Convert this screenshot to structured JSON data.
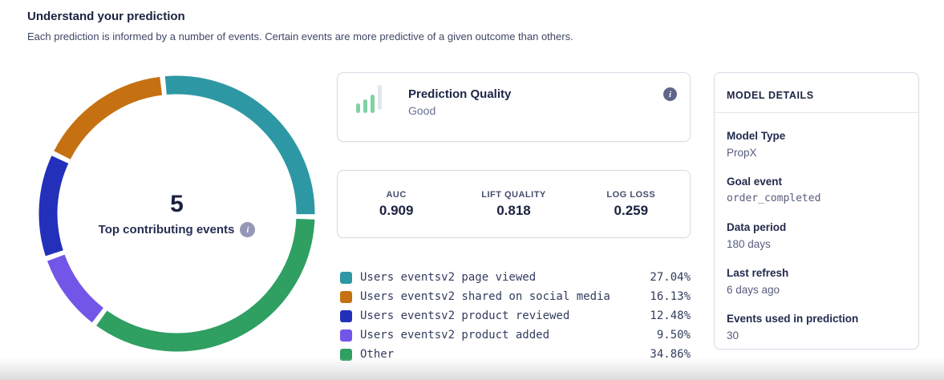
{
  "page": {
    "title": "Understand your prediction",
    "subtitle": "Each prediction is informed by a number of events. Certain events are more predictive of a given outcome than others."
  },
  "chart_data": {
    "type": "pie",
    "subtype": "donut",
    "center_value": "5",
    "center_label": "Top contributing events",
    "series": [
      {
        "name": "Users eventsv2 page viewed",
        "value": 27.04,
        "percent_label": "27.04%",
        "color": "#2D98A4"
      },
      {
        "name": "Users eventsv2 shared on social media",
        "value": 16.13,
        "percent_label": "16.13%",
        "color": "#C57112"
      },
      {
        "name": "Users eventsv2 product reviewed",
        "value": 12.48,
        "percent_label": "12.48%",
        "color": "#2230BA"
      },
      {
        "name": "Users eventsv2 product added",
        "value": 9.5,
        "percent_label": "9.50%",
        "color": "#7256E8"
      },
      {
        "name": "Other",
        "value": 34.86,
        "percent_label": "34.86%",
        "color": "#2F9F62"
      }
    ],
    "draw_order": [
      0,
      4,
      3,
      2,
      1
    ],
    "start_angle_deg": -6,
    "gap_deg": 2.2,
    "ring_thickness_px": 23,
    "legend_position": "right"
  },
  "quality_card": {
    "title": "Prediction Quality",
    "value": "Good",
    "icon": "bar-signal-icon",
    "info_icon": "info-icon"
  },
  "metrics_card": {
    "metrics": [
      {
        "label": "AUC",
        "value": "0.909"
      },
      {
        "label": "LIFT QUALITY",
        "value": "0.818"
      },
      {
        "label": "LOG LOSS",
        "value": "0.259"
      }
    ]
  },
  "model_details": {
    "header": "MODEL DETAILS",
    "rows": [
      {
        "label": "Model Type",
        "value": "PropX"
      },
      {
        "label": "Goal event",
        "value": "order_completed"
      },
      {
        "label": "Data period",
        "value": "180 days"
      },
      {
        "label": "Last refresh",
        "value": "6 days ago"
      },
      {
        "label": "Events used in prediction",
        "value": "30"
      }
    ]
  },
  "colors": {
    "accent_teal": "#2D98A4",
    "accent_orange": "#C57112",
    "accent_blue": "#2230BA",
    "accent_purple": "#7256E8",
    "accent_green": "#2F9F62",
    "icon_green": "#7FD2A2",
    "icon_gray": "#E3E5EF",
    "info_badge_dark": "#60668A",
    "info_badge_light": "#9497B6",
    "text_dark": "#1B2240",
    "text_muted": "#6B7292",
    "card_border": "#D9DCE7"
  }
}
